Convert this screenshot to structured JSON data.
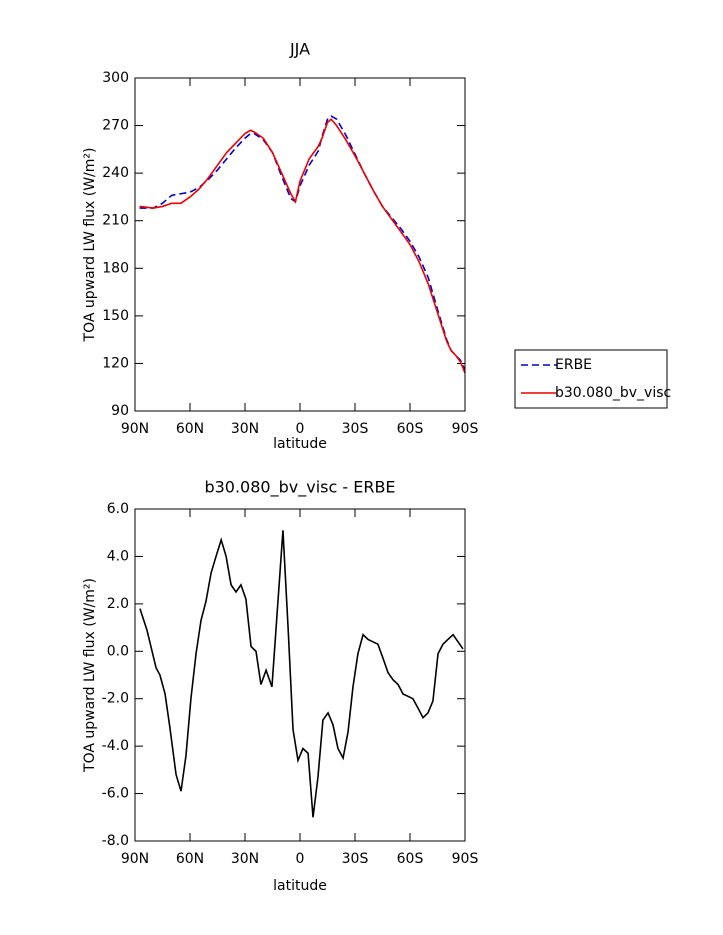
{
  "chart_data": [
    {
      "type": "line",
      "title": "JJA",
      "xlabel": "latitude",
      "ylabel": "TOA upward LW flux (W/m²)",
      "x": [
        87.5,
        80,
        75,
        70,
        65,
        60,
        55,
        50,
        45,
        40,
        35,
        30,
        27,
        25,
        20,
        15,
        10,
        5,
        2.5,
        0,
        -5,
        -10,
        -12,
        -15,
        -17,
        -20,
        -25,
        -30,
        -35,
        -40,
        -45,
        -50,
        -55,
        -60,
        -65,
        -70,
        -75,
        -80,
        -82.5,
        -85,
        -87.5,
        -90
      ],
      "series": [
        {
          "name": "ERBE",
          "color": "#0000cc",
          "linestyle": "dashed",
          "values": [
            218,
            218,
            221,
            226,
            227,
            228,
            231,
            236,
            242,
            249,
            256,
            262,
            265,
            265,
            261,
            253,
            238,
            224,
            222,
            232,
            245,
            254,
            263,
            274,
            276,
            274,
            264,
            252,
            240,
            229,
            219,
            212,
            205,
            197,
            187,
            174,
            154,
            135,
            128,
            125,
            122,
            116
          ]
        },
        {
          "name": "b30.080_bv_visc",
          "color": "#ee0000",
          "linestyle": "solid",
          "values": [
            219,
            218,
            219,
            221,
            221,
            225,
            230,
            237,
            245,
            253,
            259,
            265,
            267,
            266,
            262,
            253,
            240,
            227,
            222,
            235,
            249,
            257,
            262,
            272,
            274,
            270,
            261,
            251,
            240,
            229,
            219,
            211,
            203,
            195,
            184,
            170,
            152,
            134,
            128,
            125,
            121,
            114
          ]
        }
      ],
      "legend": "right",
      "xlim": [
        90,
        -90
      ],
      "xticks": [
        {
          "value": 90,
          "label": "90N"
        },
        {
          "value": 60,
          "label": "60N"
        },
        {
          "value": 30,
          "label": "30N"
        },
        0,
        {
          "value": -30,
          "label": "30S"
        },
        {
          "value": -60,
          "label": "60S"
        },
        {
          "value": -90,
          "label": "90S"
        }
      ],
      "ylim": [
        90,
        300
      ],
      "yticks": [
        90,
        120,
        150,
        180,
        210,
        240,
        270,
        300
      ]
    },
    {
      "type": "line",
      "title": "b30.080_bv_visc - ERBE",
      "xlabel": "latitude",
      "ylabel": "TOA upward LW flux (W/m²)",
      "x": [
        87.3,
        83.5,
        78.5,
        76.4,
        73.6,
        71,
        67.6,
        64.9,
        62.2,
        59.5,
        56.7,
        54,
        51.3,
        48.5,
        45.8,
        43,
        40.3,
        37.6,
        34.9,
        32.2,
        29.5,
        26.7,
        24,
        21.3,
        18.5,
        15.3,
        9.3,
        6.5,
        3.8,
        1.1,
        -1.6,
        -4.4,
        -7.1,
        -9.8,
        -12.5,
        -15.3,
        -18,
        -20.7,
        -23.5,
        -26.2,
        -28.9,
        -31.6,
        -34.4,
        -37.1,
        -39.8,
        -42.5,
        -45.3,
        -48,
        -50.7,
        -53.5,
        -56.2,
        -58.9,
        -61.6,
        -64.4,
        -67.1,
        -69.8,
        -72.5,
        -75.3,
        -78,
        -80.7,
        -83.5,
        -86.2,
        -88.9
      ],
      "series": [
        {
          "name": "b30.080_bv_visc - ERBE",
          "color": "#000000",
          "linestyle": "solid",
          "values": [
            1.8,
            0.9,
            -0.7,
            -1.0,
            -1.8,
            -3.2,
            -5.2,
            -5.9,
            -4.4,
            -2.0,
            -0.1,
            1.3,
            2.1,
            3.3,
            4.0,
            4.7,
            4.0,
            2.8,
            2.5,
            2.8,
            2.2,
            0.2,
            0.0,
            -1.4,
            -0.8,
            -1.5,
            5.1,
            1.0,
            -3.3,
            -4.6,
            -4.1,
            -4.3,
            -7.0,
            -5.3,
            -2.9,
            -2.6,
            -3.1,
            -4.1,
            -4.5,
            -3.4,
            -1.5,
            -0.1,
            0.7,
            0.5,
            0.4,
            0.3,
            -0.3,
            -0.9,
            -1.2,
            -1.4,
            -1.8,
            -1.9,
            -2.0,
            -2.4,
            -2.8,
            -2.6,
            -2.1,
            -0.1,
            0.3,
            0.5,
            0.7,
            0.4,
            0.1
          ]
        }
      ],
      "xlim": [
        90,
        -90
      ],
      "xticks": [
        {
          "value": 90,
          "label": "90N"
        },
        {
          "value": 60,
          "label": "60N"
        },
        {
          "value": 30,
          "label": "30N"
        },
        0,
        {
          "value": -30,
          "label": "30S"
        },
        {
          "value": -60,
          "label": "60S"
        },
        {
          "value": -90,
          "label": "90S"
        }
      ],
      "ylim": [
        -8,
        6
      ],
      "yticks": [
        {
          "value": -8,
          "label": "-8.0"
        },
        {
          "value": -6,
          "label": "-6.0"
        },
        {
          "value": -4,
          "label": "-4.0"
        },
        {
          "value": -2,
          "label": "-2.0"
        },
        {
          "value": 0,
          "label": "0.0"
        },
        {
          "value": 2,
          "label": "2.0"
        },
        {
          "value": 4,
          "label": "4.0"
        },
        {
          "value": 6,
          "label": "6.0"
        }
      ]
    }
  ]
}
